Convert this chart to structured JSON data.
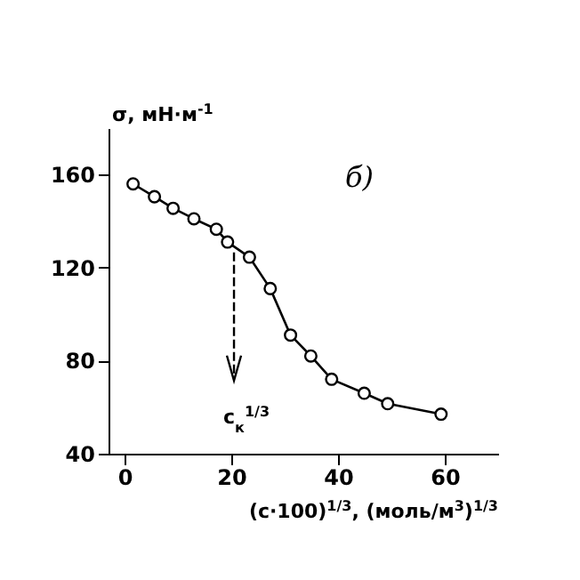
{
  "chart_data": {
    "type": "line",
    "title": "б)",
    "xlabel": "(c·100)$^{1/3}$, (моль/м$^{3}$)$^{1/3}$",
    "ylabel": "σ, мН·м$^{-1}$",
    "x": [
      1.6,
      5.6,
      9.1,
      13,
      17.2,
      19.3,
      23.4,
      27.3,
      31.1,
      34.9,
      38.8,
      44.9,
      49.3,
      59.3
    ],
    "series": [
      {
        "color": "#000000",
        "values": [
          156,
          150.5,
          145.5,
          141,
          136.5,
          131,
          124.5,
          111,
          91,
          82,
          72,
          66,
          61.5,
          57
        ]
      }
    ],
    "xlim": [
      -3,
      70
    ],
    "ylim": [
      40,
      180
    ],
    "xticks": [
      0,
      20,
      40,
      60
    ],
    "yticks": [
      40,
      80,
      120,
      160
    ],
    "grid": false,
    "legend": false,
    "marker": "circle",
    "line_style": "solid",
    "annotations": [
      "c$_{к}$$^{1/3}$"
    ]
  }
}
